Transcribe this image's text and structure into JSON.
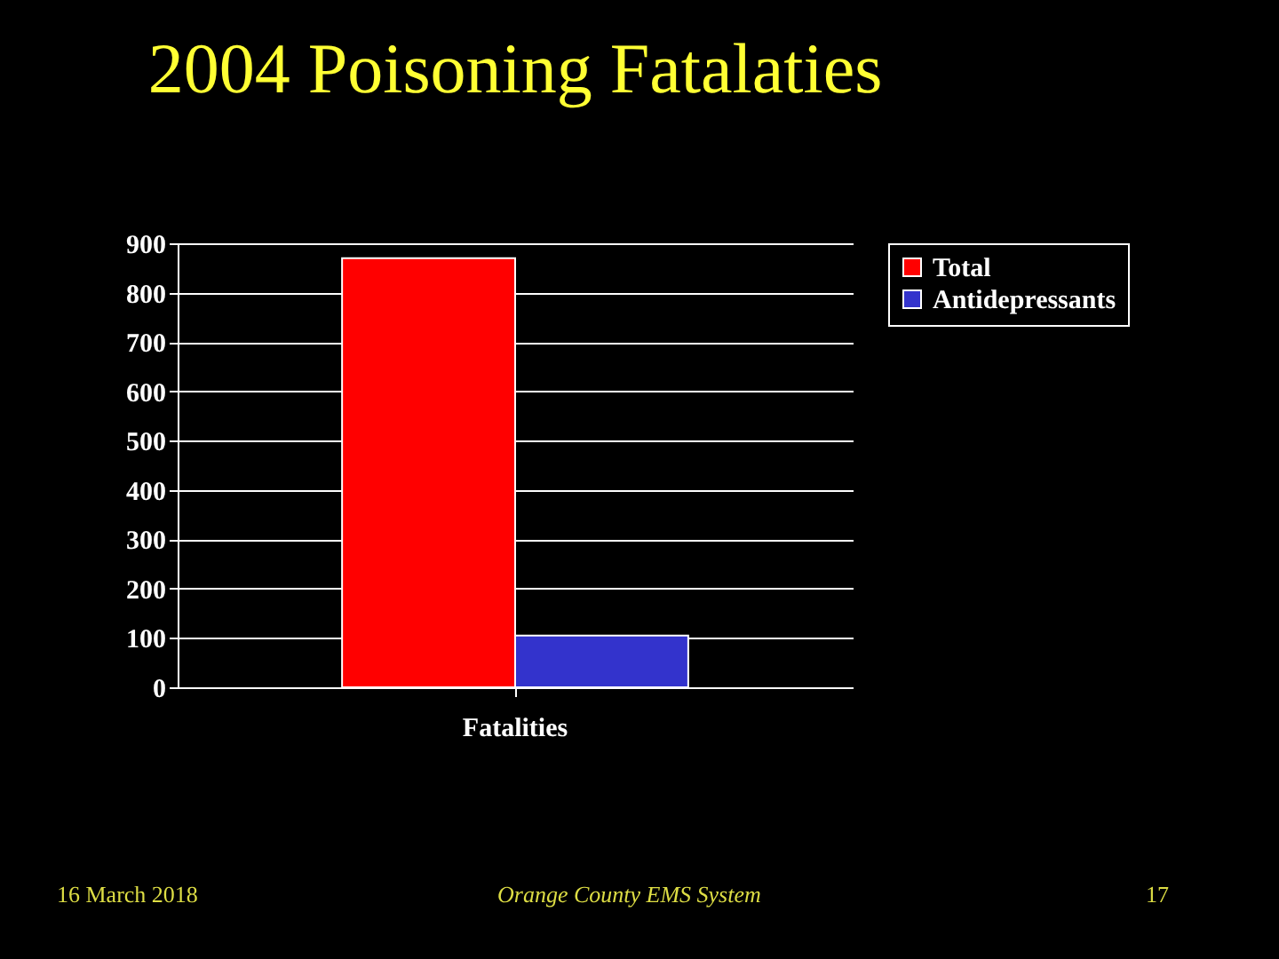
{
  "chart_data": {
    "type": "bar",
    "title": "2004 Poisoning Fatalaties",
    "categories": [
      "Fatalities"
    ],
    "series": [
      {
        "name": "Total",
        "color": "#ff0000",
        "values": [
          870
        ]
      },
      {
        "name": "Antidepressants",
        "color": "#3333cc",
        "values": [
          105
        ]
      }
    ],
    "ylim": [
      0,
      900
    ],
    "yticks": [
      0,
      100,
      200,
      300,
      400,
      500,
      600,
      700,
      800,
      900
    ],
    "grid": "y",
    "legend": "right",
    "annotations": [
      "16 March 2018",
      "Orange County EMS System",
      "17"
    ]
  }
}
